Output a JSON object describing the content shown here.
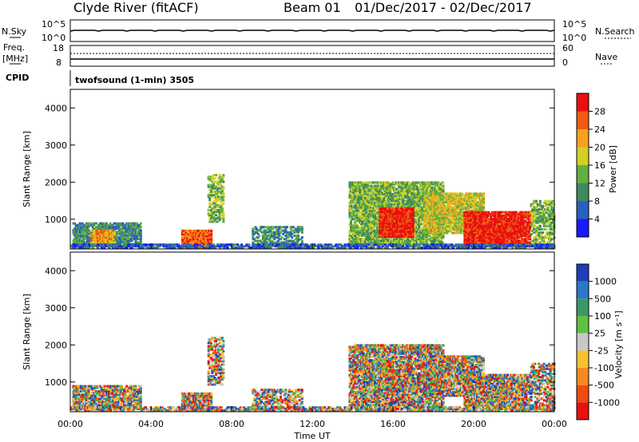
{
  "header": {
    "station": "Clyde River (fitACF)",
    "beam": "Beam 01",
    "date_range": "01/Dec/2017 - 02/Dec/2017"
  },
  "strips": {
    "nsky_label": "N.Sky",
    "nsky_ticks": [
      "10^5",
      "10^0"
    ],
    "nsearch_label": "N.Search",
    "nsearch_ticks": [
      "10^5",
      "10^0"
    ],
    "freq_label_1": "Freq.",
    "freq_label_2": "[MHz]",
    "freq_ticks": [
      "18",
      "8"
    ],
    "nave_label": "Nave",
    "nave_ticks": [
      "60",
      "0"
    ],
    "cpid_label": "CPID",
    "cpid_text": "twofsound (1-min) 3505"
  },
  "chart_data": [
    {
      "type": "heatmap",
      "name": "power",
      "ylabel": "Slant Range [km]",
      "yticks": [
        "1000",
        "2000",
        "3000",
        "4000"
      ],
      "ylim": [
        200,
        4500
      ],
      "xticks": [
        "00:00",
        "04:00",
        "08:00",
        "12:00",
        "16:00",
        "20:00",
        "00:00"
      ],
      "colorbar_label": "Power [dB]",
      "colorbar_ticks": [
        "4",
        "8",
        "12",
        "16",
        "20",
        "24",
        "28"
      ],
      "colorbar_colors": [
        "#1a1aff",
        "#2a5fc0",
        "#3e8a5e",
        "#62b040",
        "#d2cf25",
        "#f7a020",
        "#ef5a10",
        "#e81010"
      ]
    },
    {
      "type": "heatmap",
      "name": "velocity",
      "ylabel": "Slant Range [km]",
      "yticks": [
        "1000",
        "2000",
        "3000",
        "4000"
      ],
      "ylim": [
        200,
        4500
      ],
      "xticks": [
        "00:00",
        "04:00",
        "08:00",
        "12:00",
        "16:00",
        "20:00",
        "00:00"
      ],
      "xlabel": "Time UT",
      "colorbar_label": "Velocity [m s⁻¹]",
      "colorbar_ticks": [
        "1000",
        "500",
        "100",
        "25",
        "-25",
        "-100",
        "-500",
        "-1000"
      ],
      "colorbar_colors": [
        "#1f3fb8",
        "#2a78c8",
        "#3a9868",
        "#60c040",
        "#c8c8c8",
        "#f7c030",
        "#f78a20",
        "#f04a10",
        "#e81010"
      ]
    }
  ]
}
